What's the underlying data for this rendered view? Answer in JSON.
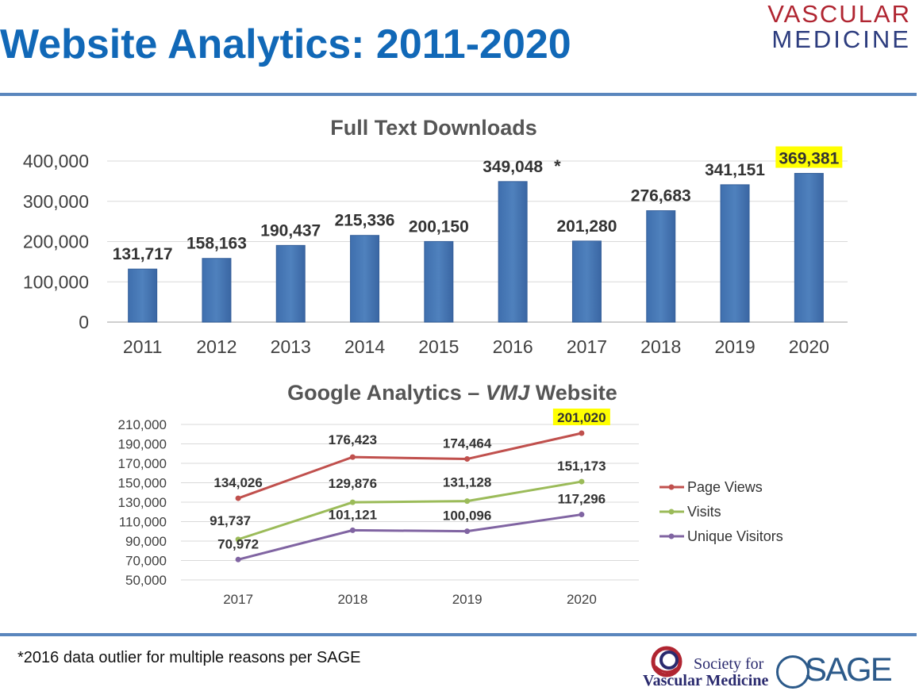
{
  "slide": {
    "title": "Website Analytics: 2011-2020",
    "logo_line1": "VASCULAR",
    "logo_line2": "MEDICINE",
    "footnote": "*2016 data outlier for multiple reasons per SAGE",
    "footer_logo_svm_line1": "Society for",
    "footer_logo_svm_line2": "Vascular Medicine",
    "footer_logo_sage": "SAGE",
    "accent_color": "#1168b7",
    "rule_color": "#5a86bd",
    "highlight_color": "#ffff00"
  },
  "chart_data": [
    {
      "type": "bar",
      "title": "Full Text Downloads",
      "categories": [
        "2011",
        "2012",
        "2013",
        "2014",
        "2015",
        "2016",
        "2017",
        "2018",
        "2019",
        "2020"
      ],
      "values": [
        131717,
        158163,
        190437,
        215336,
        200150,
        349048,
        201280,
        276683,
        341151,
        369381
      ],
      "value_labels": [
        "131,717",
        "158,163",
        "190,437",
        "215,336",
        "200,150",
        "349,048",
        "201,280",
        "276,683",
        "341,151",
        "369,381"
      ],
      "ylim": [
        0,
        400000
      ],
      "yticks": [
        "0",
        "100,000",
        "200,000",
        "300,000",
        "400,000"
      ],
      "bar_color": "#4f81bd",
      "annotation": {
        "category": "2016",
        "text": "*"
      },
      "highlighted_category": "2020",
      "grid": true
    },
    {
      "type": "line",
      "title_prefix": "Google Analytics – ",
      "title_italic": "VMJ",
      "title_suffix": " Website",
      "categories": [
        "2017",
        "2018",
        "2019",
        "2020"
      ],
      "ylim": [
        50000,
        210000
      ],
      "yticks": [
        "50,000",
        "70,000",
        "90,000",
        "110,000",
        "130,000",
        "150,000",
        "170,000",
        "190,000",
        "210,000"
      ],
      "series": [
        {
          "name": "Page Views",
          "color": "#c0504d",
          "values": [
            134026,
            176423,
            174464,
            201020
          ],
          "labels": [
            "134,026",
            "176,423",
            "174,464",
            "201,020"
          ]
        },
        {
          "name": "Visits",
          "color": "#9bbb59",
          "values": [
            91737,
            129876,
            131128,
            151173
          ],
          "labels": [
            "91,737",
            "129,876",
            "131,128",
            "151,173"
          ]
        },
        {
          "name": "Unique Visitors",
          "color": "#8064a2",
          "values": [
            70972,
            101121,
            100096,
            117296
          ],
          "labels": [
            "70,972",
            "101,121",
            "100,096",
            "117,296"
          ]
        }
      ],
      "highlighted_point": {
        "series": "Page Views",
        "category": "2020"
      },
      "legend_position": "right",
      "grid": true
    }
  ]
}
